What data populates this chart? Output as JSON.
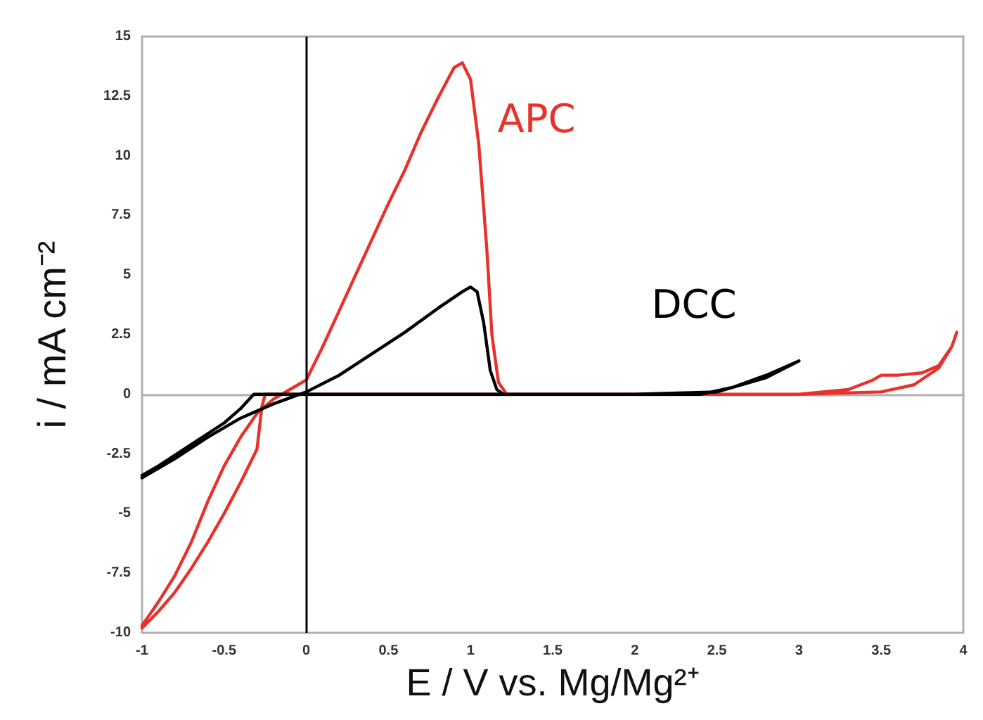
{
  "chart_data": {
    "type": "line",
    "xlabel": "E / V vs. Mg/Mg²⁺",
    "ylabel": "i / mA cm⁻²",
    "xlim": [
      -1,
      4
    ],
    "ylim": [
      -10,
      15
    ],
    "xticks": [
      -1,
      -0.5,
      0,
      0.5,
      1,
      1.5,
      2,
      2.5,
      3,
      3.5,
      4
    ],
    "yticks": [
      -10,
      -7.5,
      -5,
      -2.5,
      0,
      2.5,
      5,
      7.5,
      10,
      12.5,
      15
    ],
    "grid": false,
    "marker": "none",
    "line_style": "solid",
    "ref_lines": [
      {
        "axis": "x",
        "value": 0,
        "color": "#000000"
      }
    ],
    "series": [
      {
        "name": "APC",
        "color": "#e8312a",
        "x": [
          -1,
          -0.9,
          -0.8,
          -0.7,
          -0.6,
          -0.5,
          -0.4,
          -0.3,
          -0.2,
          -0.1,
          0,
          0.1,
          0.2,
          0.3,
          0.4,
          0.5,
          0.6,
          0.7,
          0.8,
          0.9,
          0.95,
          1.0,
          1.05,
          1.1,
          1.13,
          1.17,
          1.22,
          2,
          3,
          3.3,
          3.45,
          3.5,
          3.6,
          3.75,
          3.85,
          3.93,
          3.96,
          3.93,
          3.85,
          3.7,
          3.5,
          3,
          2,
          1,
          0,
          -0.25,
          -0.27,
          -0.3,
          -0.4,
          -0.5,
          -0.6,
          -0.7,
          -0.8,
          -0.9,
          -1
        ],
        "values": [
          -9.7,
          -8.7,
          -7.6,
          -6.2,
          -4.5,
          -3,
          -1.8,
          -0.8,
          -0.2,
          0.2,
          0.6,
          2,
          3.5,
          5,
          6.5,
          8,
          9.4,
          11,
          12.4,
          13.7,
          13.9,
          13.2,
          10.5,
          6,
          2.5,
          0.5,
          0,
          0,
          0,
          0.2,
          0.6,
          0.8,
          0.8,
          0.9,
          1.2,
          2,
          2.6,
          2,
          1.1,
          0.4,
          0.1,
          0,
          0,
          0,
          0,
          0,
          -0.5,
          -2.3,
          -3.7,
          -5,
          -6.2,
          -7.3,
          -8.3,
          -9.1,
          -9.8
        ]
      },
      {
        "name": "DCC",
        "color": "#000000",
        "x": [
          -1,
          -0.8,
          -0.6,
          -0.4,
          -0.2,
          0,
          0.2,
          0.4,
          0.6,
          0.8,
          0.95,
          1.0,
          1.04,
          1.08,
          1.12,
          1.16,
          1.2,
          2,
          2.4,
          2.6,
          2.8,
          3,
          2.8,
          2.5,
          2,
          1,
          0,
          -0.2,
          -0.32,
          -0.4,
          -0.5,
          -0.7,
          -0.9,
          -1
        ],
        "values": [
          -3.5,
          -2.7,
          -1.8,
          -1,
          -0.4,
          0.1,
          0.8,
          1.7,
          2.6,
          3.6,
          4.3,
          4.5,
          4.3,
          3,
          1,
          0.2,
          0,
          0,
          0,
          0.3,
          0.8,
          1.4,
          0.7,
          0.1,
          0,
          0,
          0,
          0,
          0,
          -0.6,
          -1.2,
          -2.1,
          -3,
          -3.4
        ]
      }
    ]
  }
}
